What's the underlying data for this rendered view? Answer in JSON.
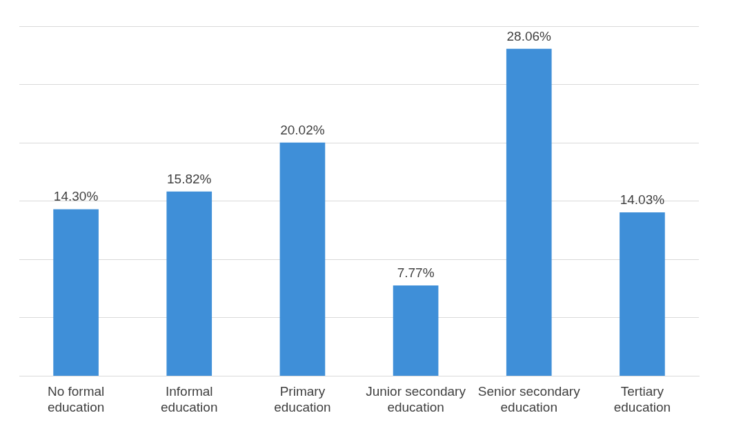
{
  "chart_data": {
    "type": "bar",
    "categories": [
      "No formal education",
      "Informal education",
      "Primary education",
      "Junior secondary education",
      "Senior secondary education",
      "Tertiary education"
    ],
    "values": [
      14.3,
      15.82,
      20.02,
      7.77,
      28.06,
      14.03
    ],
    "value_labels": [
      "14.30%",
      "15.82%",
      "20.02%",
      "7.77%",
      "28.06%",
      "14.03%"
    ],
    "color": "#3f8fd8",
    "ylim": [
      0,
      30
    ],
    "yticks": [
      0,
      5,
      10,
      15,
      20,
      25,
      30
    ],
    "grid": "y",
    "legend": false,
    "tick_labels": "x"
  }
}
